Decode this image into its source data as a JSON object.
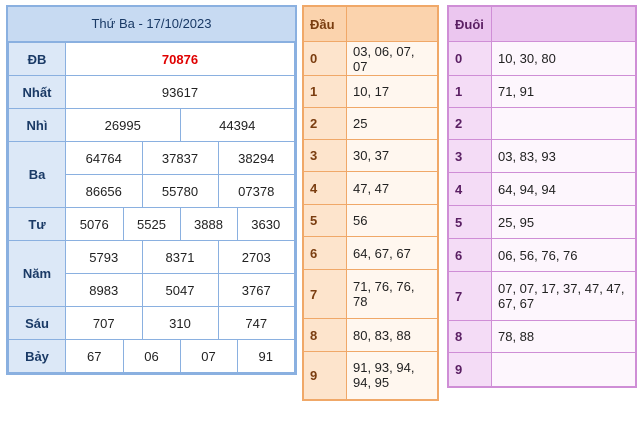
{
  "results": {
    "title": "Thứ Ba - 17/10/2023",
    "rows": [
      {
        "label": "ĐB",
        "cols": 1,
        "values": [
          "70876"
        ]
      },
      {
        "label": "Nhất",
        "cols": 1,
        "values": [
          "93617"
        ]
      },
      {
        "label": "Nhì",
        "cols": 2,
        "values": [
          "26995",
          "44394"
        ]
      },
      {
        "label": "Ba",
        "cols": 3,
        "values": [
          "64764",
          "37837",
          "38294",
          "86656",
          "55780",
          "07378"
        ]
      },
      {
        "label": "Tư",
        "cols": 4,
        "values": [
          "5076",
          "5525",
          "3888",
          "3630"
        ]
      },
      {
        "label": "Năm",
        "cols": 3,
        "values": [
          "5793",
          "8371",
          "2703",
          "8983",
          "5047",
          "3767"
        ]
      },
      {
        "label": "Sáu",
        "cols": 3,
        "values": [
          "707",
          "310",
          "747"
        ]
      },
      {
        "label": "Bảy",
        "cols": 4,
        "values": [
          "67",
          "06",
          "07",
          "91"
        ]
      }
    ]
  },
  "dau": {
    "header": "Đầu",
    "rows": [
      {
        "key": "0",
        "values": "03, 06, 07, 07"
      },
      {
        "key": "1",
        "values": "10, 17"
      },
      {
        "key": "2",
        "values": "25"
      },
      {
        "key": "3",
        "values": "30, 37"
      },
      {
        "key": "4",
        "values": "47, 47"
      },
      {
        "key": "5",
        "values": "56"
      },
      {
        "key": "6",
        "values": "64, 67, 67"
      },
      {
        "key": "7",
        "values": "71, 76, 76, 78"
      },
      {
        "key": "8",
        "values": "80, 83, 88"
      },
      {
        "key": "9",
        "values": "91, 93, 94, 94, 95"
      }
    ]
  },
  "duoi": {
    "header": "Đuôi",
    "rows": [
      {
        "key": "0",
        "values": "10, 30, 80"
      },
      {
        "key": "1",
        "values": "71, 91"
      },
      {
        "key": "2",
        "values": ""
      },
      {
        "key": "3",
        "values": "03, 83, 93"
      },
      {
        "key": "4",
        "values": "64, 94, 94"
      },
      {
        "key": "5",
        "values": "25, 95"
      },
      {
        "key": "6",
        "values": "06, 56, 76, 76"
      },
      {
        "key": "7",
        "values": "07, 07, 17, 37, 47, 47, 67, 67"
      },
      {
        "key": "8",
        "values": "78, 88"
      },
      {
        "key": "9",
        "values": ""
      }
    ]
  }
}
